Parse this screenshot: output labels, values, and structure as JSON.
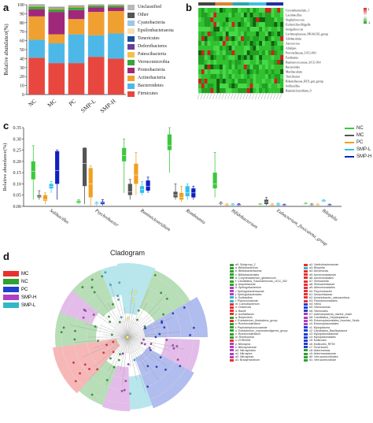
{
  "panels": {
    "a": "a",
    "b": "b",
    "c": "c",
    "d": "d"
  },
  "chart_data": [
    {
      "type": "bar",
      "panel": "a",
      "stacked": true,
      "ylabel": "Relative abundance(%)",
      "ylim": [
        0,
        100
      ],
      "yticks": [
        "0",
        "10",
        "20",
        "30",
        "40",
        "50",
        "60",
        "70",
        "80",
        "90",
        "100"
      ],
      "categories": [
        "NC",
        "MC",
        "PC",
        "SMP-L",
        "SMP-H"
      ],
      "series": [
        {
          "name": "Firmicutes",
          "color": "#e8473f",
          "values": [
            41,
            35,
            35,
            42,
            40
          ]
        },
        {
          "name": "Bacteroidetes",
          "color": "#4db8e8",
          "values": [
            20,
            22,
            32,
            24,
            28
          ]
        },
        {
          "name": "Actinobacteria",
          "color": "#f0a030",
          "values": [
            26,
            10,
            17,
            26,
            25
          ]
        },
        {
          "name": "Proteobacteria",
          "color": "#a0287a",
          "values": [
            8,
            25,
            10,
            5,
            4
          ]
        },
        {
          "name": "Verrucomicrobia",
          "color": "#3aa43a",
          "values": [
            3,
            3,
            3,
            2,
            2
          ]
        },
        {
          "name": "Patescibacteria",
          "color": "#f5c04a",
          "values": [
            1,
            1,
            1,
            0.5,
            0.5
          ]
        },
        {
          "name": "Deferribacteres",
          "color": "#6a3d9a",
          "values": [
            0.3,
            0.3,
            0.3,
            0.2,
            0.2
          ]
        },
        {
          "name": "Tenericutes",
          "color": "#1f4e9a",
          "values": [
            0.3,
            0.3,
            0.3,
            0.2,
            0.2
          ]
        },
        {
          "name": "Epsilonbacteraeota",
          "color": "#f6e0b0",
          "values": [
            0.2,
            0.2,
            0.2,
            0.1,
            0.1
          ]
        },
        {
          "name": "Cyanobacteria",
          "color": "#9cc8e8",
          "values": [
            0.2,
            0.2,
            0.2,
            0.1,
            0.1
          ]
        },
        {
          "name": "Other",
          "color": "#555555",
          "values": [
            0.3,
            0.5,
            0.3,
            0.2,
            0.2
          ]
        },
        {
          "name": "Unclassified",
          "color": "#b8b8b8",
          "values": [
            0.2,
            0.5,
            0.2,
            0.2,
            0.2
          ]
        }
      ]
    },
    {
      "type": "heatmap",
      "panel": "b",
      "rows": [
        "Corynebacterium_1",
        "Lactobacillus",
        "Staphylococcus",
        "Escherichia-Shigella",
        "Jeotgalicoccus",
        "Lachnospiraceae_NK4A136_group",
        "Allobaculum",
        "Aerococcus",
        "Alistipes",
        "Prevotellaceae_UCG-001",
        "Facklamia",
        "Ruminococcaceae_UCG-014",
        "Bacteroides",
        "Muribaculum",
        "Turicibacter",
        "Rikenellaceae_RC9_gut_group",
        "Solibacillus",
        "Ruminiclostridium_9"
      ],
      "legend_range": [
        -1,
        1
      ],
      "group_colors": [
        "#444444",
        "#e08030",
        "#2aa8a8",
        "#40c0e0",
        "#2030a0"
      ]
    },
    {
      "type": "box",
      "panel": "c",
      "ylabel": "Relative abundance(%)",
      "ylim": [
        0,
        0.35
      ],
      "yticks": [
        "0.00",
        "0.05",
        "0.10",
        "0.15",
        "0.20",
        "0.25",
        "0.30",
        "0.35"
      ],
      "categories": [
        "Solibacillus",
        "Psychrobacter",
        "Ruminiclostridium",
        "Romboutsia",
        "Bifidobacterium",
        "Eubacterium_fissicatena_group",
        "Bilophila"
      ],
      "series": [
        {
          "name": "NC",
          "color": "#3cc83c",
          "boxes": [
            [
              0.03,
              0.12,
              0.155,
              0.2,
              0.27
            ],
            [
              0.01,
              0.015,
              0.02,
              0.025,
              0.03
            ],
            [
              0.06,
              0.2,
              0.225,
              0.26,
              0.3
            ],
            [
              0.15,
              0.25,
              0.27,
              0.32,
              0.37
            ],
            [
              0.04,
              0.08,
              0.1,
              0.15,
              0.24
            ],
            [
              0.005,
              0.007,
              0.009,
              0.011,
              0.013
            ],
            [
              0.008,
              0.01,
              0.012,
              0.014,
              0.016
            ]
          ]
        },
        {
          "name": "MC",
          "color": "#555555",
          "boxes": [
            [
              0.03,
              0.04,
              0.045,
              0.05,
              0.07
            ],
            [
              0.01,
              0.09,
              0.19,
              0.26,
              0.26
            ],
            [
              0.03,
              0.05,
              0.065,
              0.1,
              0.12
            ],
            [
              0.03,
              0.04,
              0.05,
              0.065,
              0.1
            ],
            [
              0.005,
              0.01,
              0.012,
              0.015,
              0.02
            ],
            [
              0.005,
              0.01,
              0.02,
              0.03,
              0.04
            ],
            [
              0.003,
              0.005,
              0.007,
              0.009,
              0.012
            ]
          ]
        },
        {
          "name": "PC",
          "color": "#f0a020",
          "boxes": [
            [
              0.01,
              0.025,
              0.03,
              0.05,
              0.06
            ],
            [
              0.0,
              0.04,
              0.1,
              0.17,
              0.18
            ],
            [
              0.05,
              0.1,
              0.14,
              0.19,
              0.24
            ],
            [
              0.02,
              0.03,
              0.04,
              0.06,
              0.09
            ],
            [
              0.003,
              0.005,
              0.008,
              0.01,
              0.012
            ],
            [
              0.003,
              0.005,
              0.008,
              0.01,
              0.013
            ],
            [
              0.003,
              0.005,
              0.007,
              0.009,
              0.011
            ]
          ]
        },
        {
          "name": "SMP-L",
          "color": "#30c0f0",
          "boxes": [
            [
              0.06,
              0.08,
              0.09,
              0.1,
              0.11
            ],
            [
              0.005,
              0.01,
              0.012,
              0.015,
              0.02
            ],
            [
              0.05,
              0.06,
              0.075,
              0.09,
              0.11
            ],
            [
              0.03,
              0.045,
              0.06,
              0.09,
              0.1
            ],
            [
              0.003,
              0.005,
              0.007,
              0.01,
              0.012
            ],
            [
              0.003,
              0.005,
              0.008,
              0.012,
              0.015
            ],
            [
              0.02,
              0.022,
              0.025,
              0.028,
              0.03
            ]
          ]
        },
        {
          "name": "SMP-H",
          "color": "#1020c0",
          "boxes": [
            [
              0.03,
              0.1,
              0.16,
              0.245,
              0.25
            ],
            [
              0.005,
              0.01,
              0.015,
              0.02,
              0.03
            ],
            [
              0.06,
              0.07,
              0.09,
              0.115,
              0.13
            ],
            [
              0.03,
              0.04,
              0.06,
              0.08,
              0.09
            ],
            [
              0.003,
              0.005,
              0.007,
              0.01,
              0.012
            ],
            [
              0.002,
              0.004,
              0.006,
              0.008,
              0.01
            ],
            [
              0.002,
              0.004,
              0.006,
              0.008,
              0.01
            ]
          ]
        }
      ]
    }
  ],
  "cladogram": {
    "title": "Cladogram",
    "groups": [
      {
        "name": "MC",
        "color": "#e83030"
      },
      {
        "name": "NC",
        "color": "#30a030"
      },
      {
        "name": "PC",
        "color": "#2040d0"
      },
      {
        "name": "SMP-H",
        "color": "#b040c0"
      },
      {
        "name": "SMP-L",
        "color": "#30b8c8"
      }
    ],
    "taxa_left": [
      {
        "label": "a0: Subgroup_2",
        "color": "#30a030"
      },
      {
        "label": "a: Bifidobacterium",
        "color": "#30a030"
      },
      {
        "label": "b: Bifidobacteriaceae",
        "color": "#30a030"
      },
      {
        "label": "c: Bifidobacteriales",
        "color": "#30a030"
      },
      {
        "label": "d: Corynebacterium_glutamicum",
        "color": "#30a030"
      },
      {
        "label": "f: Candidatus_Saccharimonas_UCG_002",
        "color": "#30a030"
      },
      {
        "label": "g: Atopobiaceae",
        "color": "#30a030"
      },
      {
        "label": "h: Sphingobacterium",
        "color": "#b040c0"
      },
      {
        "label": "i: Sphingobacteriaceae",
        "color": "#b040c0"
      },
      {
        "label": "j: Sphingobacteriales",
        "color": "#b040c0"
      },
      {
        "label": "k: Solibacillus",
        "color": "#30b8c8"
      },
      {
        "label": "l: Planococcaceae",
        "color": "#30b8c8"
      },
      {
        "label": "m: Carnobacterium",
        "color": "#e83030"
      },
      {
        "label": "n: Desemzia",
        "color": "#e83030"
      },
      {
        "label": "o: Bacilli",
        "color": "#e83030"
      },
      {
        "label": "p: Acetatifactor",
        "color": "#e83030"
      },
      {
        "label": "q: Butyrivibrio",
        "color": "#30a030"
      },
      {
        "label": "r: Eubacterium_fissicatena_group",
        "color": "#e83030"
      },
      {
        "label": "s: Ruminiclostridium",
        "color": "#30a030"
      },
      {
        "label": "t: Peptostreptococcaceae",
        "color": "#30a030"
      },
      {
        "label": "u: Eubacterium_coprostanoligenes_group",
        "color": "#30a030"
      },
      {
        "label": "v: Ruminiclostridium",
        "color": "#30a030"
      },
      {
        "label": "w: Romboutsia",
        "color": "#30a030"
      },
      {
        "label": "x: ZOR0006",
        "color": "#e83030"
      },
      {
        "label": "y: Nitrospira",
        "color": "#b040c0"
      },
      {
        "label": "z: Nitrospiraceae",
        "color": "#b040c0"
      },
      {
        "label": "a0: Nitrospirales",
        "color": "#b040c0"
      },
      {
        "label": "a1: Nitrospira",
        "color": "#b040c0"
      },
      {
        "label": "a2: Nitrospirae",
        "color": "#b040c0"
      },
      {
        "label": "a1: Bradyrhizobium",
        "color": "#e83030"
      }
    ],
    "taxa_right": [
      {
        "label": "a2: Xanthobacteraceae",
        "color": "#e83030"
      },
      {
        "label": "a3: Bilophila",
        "color": "#30b8c8"
      },
      {
        "label": "a4: Aeromonas",
        "color": "#e83030"
      },
      {
        "label": "a5: Aeromonadaceae",
        "color": "#e83030"
      },
      {
        "label": "a6: Aeromonadales",
        "color": "#e83030"
      },
      {
        "label": "a7: Shewanella",
        "color": "#e83030"
      },
      {
        "label": "a8: Shewanellaceae",
        "color": "#e83030"
      },
      {
        "label": "a9: Alteromonadales",
        "color": "#e83030"
      },
      {
        "label": "b0: Psychrobacter",
        "color": "#e83030"
      },
      {
        "label": "b1: Moraxellaceae",
        "color": "#e83030"
      },
      {
        "label": "b2: Acinetobacter_calcoaceticus",
        "color": "#e83030"
      },
      {
        "label": "b3: Pseudomonadales",
        "color": "#e83030"
      },
      {
        "label": "b4: Vibrio",
        "color": "#2040d0"
      },
      {
        "label": "b5: Vibrionaceae",
        "color": "#2040d0"
      },
      {
        "label": "b6: Vibrionales",
        "color": "#2040d0"
      },
      {
        "label": "b7: Asteroleplasma_marine_clade",
        "color": "#b040c0"
      },
      {
        "label": "b8: Candidatus_Hepatoplasma",
        "color": "#b040c0"
      },
      {
        "label": "b9: Entomoplasmatales_Incertae_Sedis",
        "color": "#b040c0"
      },
      {
        "label": "c0: Entomoplasmatales",
        "color": "#b040c0"
      },
      {
        "label": "c1: Mycoplasma",
        "color": "#2040d0"
      },
      {
        "label": "c2: Candidatus_Bacilloplasma",
        "color": "#2040d0"
      },
      {
        "label": "c3: Mycoplasmataceae",
        "color": "#2040d0"
      },
      {
        "label": "c4: Mycoplasmatales",
        "color": "#2040d0"
      },
      {
        "label": "c5: Mollicutes",
        "color": "#2040d0"
      },
      {
        "label": "c6: Mollicutes_RF39",
        "color": "#2040d0"
      },
      {
        "label": "c7: Tenericutes",
        "color": "#2040d0"
      },
      {
        "label": "c8: Akkermansia",
        "color": "#30a030"
      },
      {
        "label": "c9: Akkermansiaceae",
        "color": "#30a030"
      },
      {
        "label": "d0: Verrucomicrobiales",
        "color": "#30a030"
      },
      {
        "label": "d1: Verrucomicrobiae",
        "color": "#30a030"
      }
    ]
  }
}
